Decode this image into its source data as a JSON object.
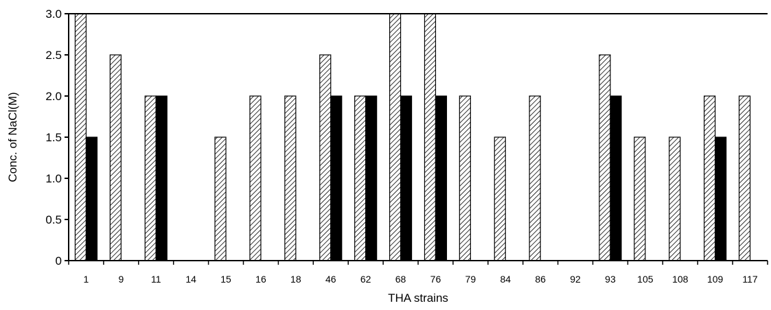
{
  "chart_data": {
    "type": "bar",
    "xlabel": "THA strains",
    "ylabel": "Conc. of NaCl(M)",
    "ylim": [
      0,
      3.0
    ],
    "yticks": [
      "0",
      "0.5",
      "1.0",
      "1.5",
      "2.0",
      "2.5",
      "3.0"
    ],
    "grid": false,
    "legend": "none",
    "categories": [
      "1",
      "9",
      "11",
      "14",
      "15",
      "16",
      "18",
      "46",
      "62",
      "68",
      "76",
      "79",
      "84",
      "86",
      "92",
      "93",
      "105",
      "108",
      "109",
      "117"
    ],
    "series": [
      {
        "style": "hatched",
        "color": "#ffffff",
        "values": [
          3.0,
          2.5,
          2.0,
          0,
          1.5,
          2.0,
          2.0,
          2.5,
          2.0,
          3.0,
          3.0,
          2.0,
          1.5,
          2.0,
          0,
          2.5,
          1.5,
          1.5,
          2.0,
          2.0
        ]
      },
      {
        "style": "solid",
        "color": "#000000",
        "values": [
          1.5,
          0,
          2.0,
          0,
          0,
          0,
          0,
          2.0,
          2.0,
          2.0,
          2.0,
          0,
          0,
          0,
          0,
          2.0,
          0,
          0,
          1.5,
          0
        ]
      }
    ]
  }
}
